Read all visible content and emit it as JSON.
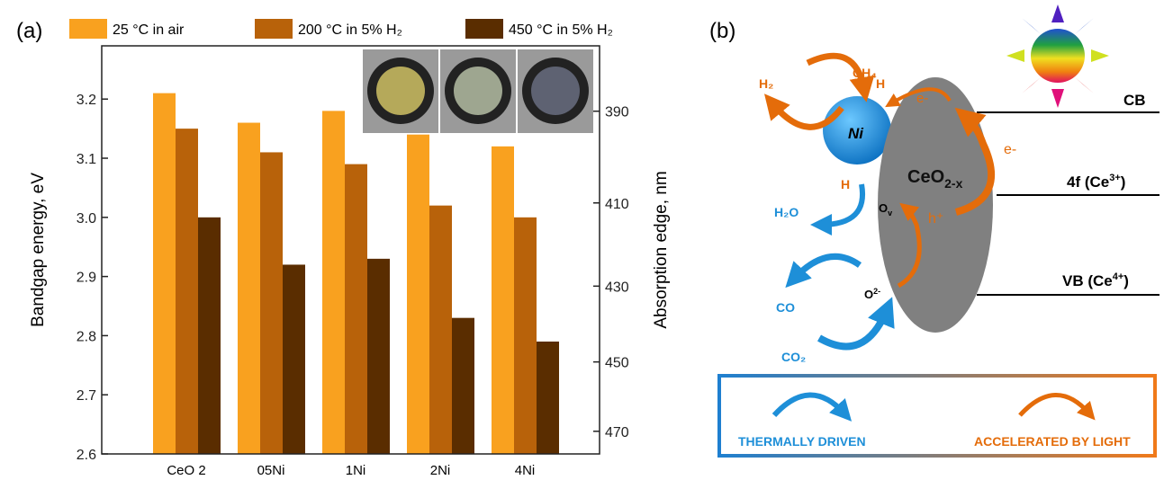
{
  "panel_a_label": "(a)",
  "panel_b_label": "(b)",
  "chart_data": {
    "type": "bar",
    "categories": [
      "CeO 2",
      "05Ni",
      "1Ni",
      "2Ni",
      "4Ni"
    ],
    "series": [
      {
        "name": "25 °C in air",
        "color": "#F9A11F",
        "values": [
          3.21,
          3.16,
          3.18,
          3.14,
          3.12
        ]
      },
      {
        "name": "200 °C in 5% H₂",
        "color": "#B8620A",
        "values": [
          3.15,
          3.11,
          3.09,
          3.02,
          3.0
        ]
      },
      {
        "name": "450 °C in 5% H₂",
        "color": "#5A2D00",
        "values": [
          3.0,
          2.92,
          2.93,
          2.83,
          2.79
        ]
      }
    ],
    "ylabel": "Bandgap energy, eV",
    "ylim": [
      2.6,
      3.29
    ],
    "yticks": [
      "2.6",
      "2.7",
      "2.8",
      "2.9",
      "3.0",
      "3.1",
      "3.2"
    ],
    "y2label": "Absorption edge, nm",
    "y2ticks": [
      "390",
      "410",
      "430",
      "450",
      "470"
    ],
    "legend_position": "top",
    "inset": "three sample photos (yellow, pale green, dark grey-blue)"
  },
  "diagram": {
    "ni": "Ni",
    "ceo2": "CeO",
    "ceo2_sub": "2-x",
    "cb": "CB",
    "f4": "4f (Ce",
    "f4_sup": "3+",
    "vb": "VB (Ce",
    "vb_sup": "4+",
    "close": ")",
    "ch4": "CH₄",
    "h2": "H₂",
    "h_top": "H",
    "h_bottom": "H",
    "e_top": "e-",
    "e_right": "e-",
    "h_plus": "h⁺",
    "ov": "O",
    "ov_sub": "v",
    "o2": "O",
    "o2_sup": "2-",
    "h2o": "H₂O",
    "co": "CO",
    "co2": "CO₂",
    "legend_thermal": "THERMALLY DRIVEN",
    "legend_light": "ACCELERATED BY LIGHT",
    "orange": "#E46C0A",
    "blue": "#1E8FD8"
  }
}
